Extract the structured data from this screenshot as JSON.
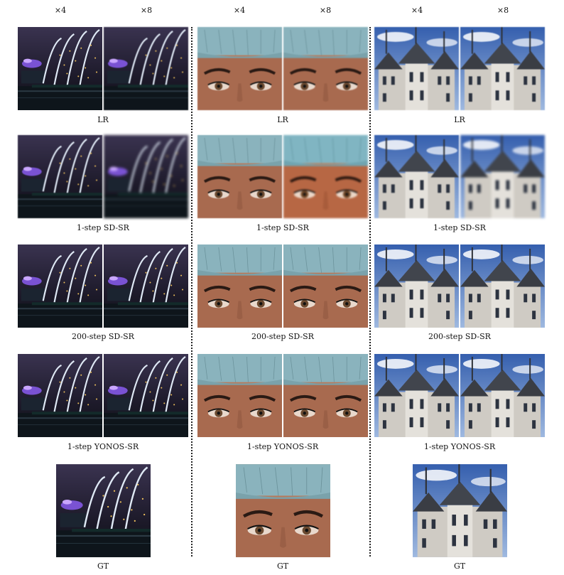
{
  "scale_labels": [
    "×4",
    "×8"
  ],
  "row_labels": [
    "LR",
    "1-step SD-SR",
    "200-step SD-SR",
    "1-step YONOS-SR",
    "GT"
  ],
  "scenes": [
    {
      "name": "night-bridge",
      "sky": "#2a2540",
      "accent": "#8a5cf0"
    },
    {
      "name": "face-eyes",
      "sky": "#8ab3bd",
      "accent": "#6b4a30"
    },
    {
      "name": "castle",
      "sky": "#3f6fbf",
      "accent": "#d9d6d0"
    }
  ]
}
